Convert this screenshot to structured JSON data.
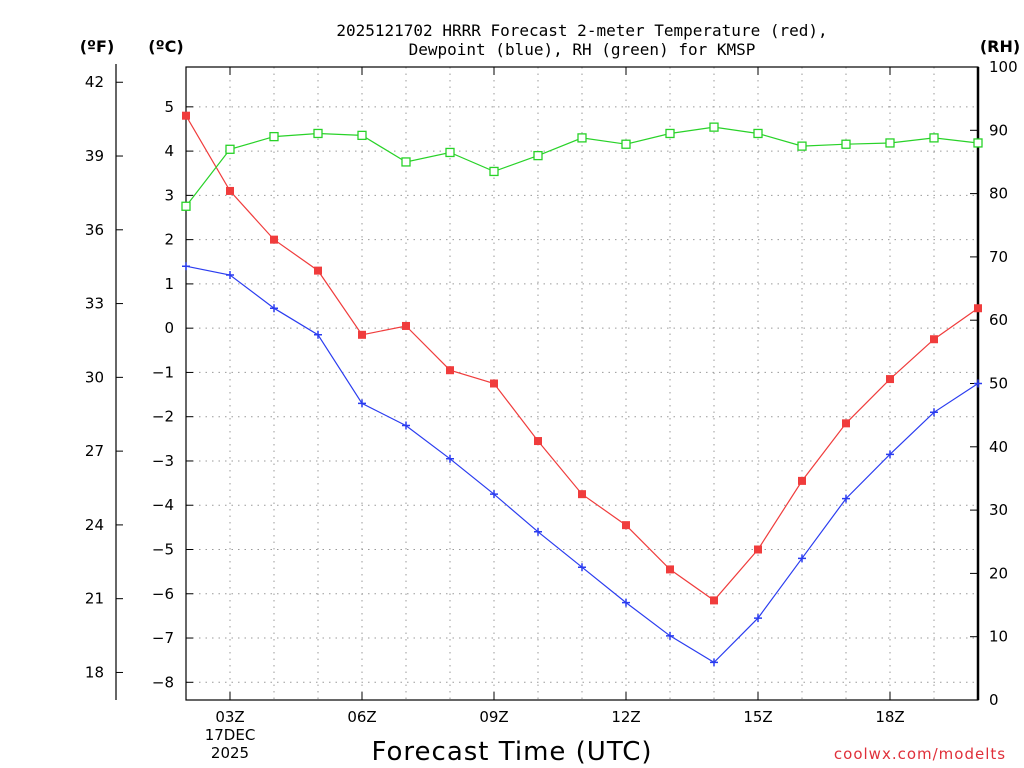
{
  "chart_data": {
    "type": "line",
    "title_line1": "2025121702 HRRR Forecast 2-meter Temperature (red),",
    "title_line2": "Dewpoint (blue), RH (green) for KMSP",
    "xlabel": "Forecast Time (UTC)",
    "credit": "coolwx.com/modelts",
    "units": {
      "fahrenheit": "(ºF)",
      "celsius": "(ºC)",
      "rh": "(RH)"
    },
    "x_hours": [
      2,
      3,
      4,
      5,
      6,
      7,
      8,
      9,
      10,
      11,
      12,
      13,
      14,
      15,
      16,
      17,
      18,
      19,
      20
    ],
    "x_range": [
      2,
      20
    ],
    "x_ticks": [
      {
        "hour": 3,
        "label": "03Z",
        "sub1": "17DEC",
        "sub2": "2025"
      },
      {
        "hour": 6,
        "label": "06Z"
      },
      {
        "hour": 9,
        "label": "09Z"
      },
      {
        "hour": 12,
        "label": "12Z"
      },
      {
        "hour": 15,
        "label": "15Z"
      },
      {
        "hour": 18,
        "label": "18Z"
      }
    ],
    "celsius_range": [
      -8.4,
      5.9
    ],
    "celsius_ticks": [
      "5",
      "4",
      "3",
      "2",
      "1",
      "0",
      "−1",
      "−2",
      "−3",
      "−4",
      "−5",
      "−6",
      "−7",
      "−8"
    ],
    "celsius_tick_values": [
      5,
      4,
      3,
      2,
      1,
      0,
      -1,
      -2,
      -3,
      -4,
      -5,
      -6,
      -7,
      -8
    ],
    "fahrenheit_ticks": [
      "42",
      "39",
      "36",
      "33",
      "30",
      "27",
      "24",
      "21",
      "18"
    ],
    "fahrenheit_tick_values": [
      42,
      39,
      36,
      33,
      30,
      27,
      24,
      21,
      18
    ],
    "rh_range": [
      0,
      100
    ],
    "rh_ticks": [
      "100",
      "90",
      "80",
      "70",
      "60",
      "50",
      "40",
      "30",
      "20",
      "10",
      "0"
    ],
    "rh_tick_values": [
      100,
      90,
      80,
      70,
      60,
      50,
      40,
      30,
      20,
      10,
      0
    ],
    "series": [
      {
        "name": "Temperature",
        "axis": "celsius",
        "color": "#f03c3c",
        "marker": "filled-square",
        "values": [
          4.8,
          3.1,
          2.0,
          1.3,
          -0.15,
          0.05,
          -0.95,
          -1.25,
          -2.55,
          -3.75,
          -4.45,
          -5.45,
          -6.15,
          -5.0,
          -3.45,
          -2.15,
          -1.15,
          -0.25,
          0.45
        ]
      },
      {
        "name": "Dewpoint",
        "axis": "celsius",
        "color": "#2a3cf0",
        "marker": "plus",
        "values": [
          1.4,
          1.2,
          0.45,
          -0.15,
          -1.7,
          -2.2,
          -2.95,
          -3.75,
          -4.6,
          -5.4,
          -6.2,
          -6.95,
          -7.55,
          -6.55,
          -5.2,
          -3.85,
          -2.85,
          -1.9,
          -1.25
        ]
      },
      {
        "name": "RH",
        "axis": "rh",
        "color": "#28d228",
        "marker": "open-square",
        "values": [
          78,
          87,
          89,
          89.5,
          89.2,
          85,
          86.5,
          83.5,
          86,
          88.8,
          87.8,
          89.5,
          90.5,
          89.5,
          87.5,
          87.8,
          88,
          88.8,
          88
        ]
      }
    ]
  }
}
